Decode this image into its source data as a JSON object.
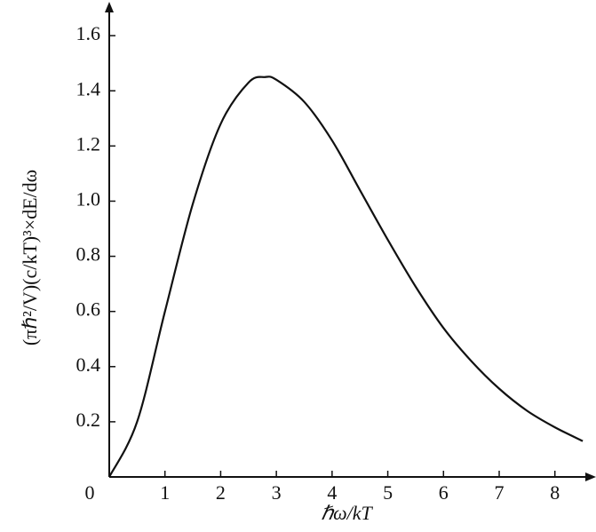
{
  "chart_data": {
    "type": "line",
    "x_label": "ℏω/kT",
    "y_label": "(πℏ²/V)(c/kT)³×dE/dω",
    "x": [
      0,
      0.5,
      1,
      1.5,
      2,
      2.5,
      2.8,
      3,
      3.5,
      4,
      4.5,
      5,
      5.5,
      6,
      6.5,
      7,
      7.5,
      8,
      8.5
    ],
    "values": [
      0,
      0.2,
      0.6,
      0.99,
      1.28,
      1.43,
      1.45,
      1.44,
      1.36,
      1.22,
      1.04,
      0.86,
      0.69,
      0.54,
      0.42,
      0.32,
      0.24,
      0.18,
      0.13
    ],
    "color": "#111111",
    "xlim": [
      0,
      8.69
    ],
    "ylim": [
      0,
      1.71
    ],
    "xticks": [
      0,
      1,
      2,
      3,
      4,
      5,
      6,
      7,
      8
    ],
    "yticks": [
      0.2,
      0.4,
      0.6,
      0.8,
      {
        "value": 1,
        "label": "1.0"
      },
      1.2,
      1.4,
      1.6
    ]
  }
}
